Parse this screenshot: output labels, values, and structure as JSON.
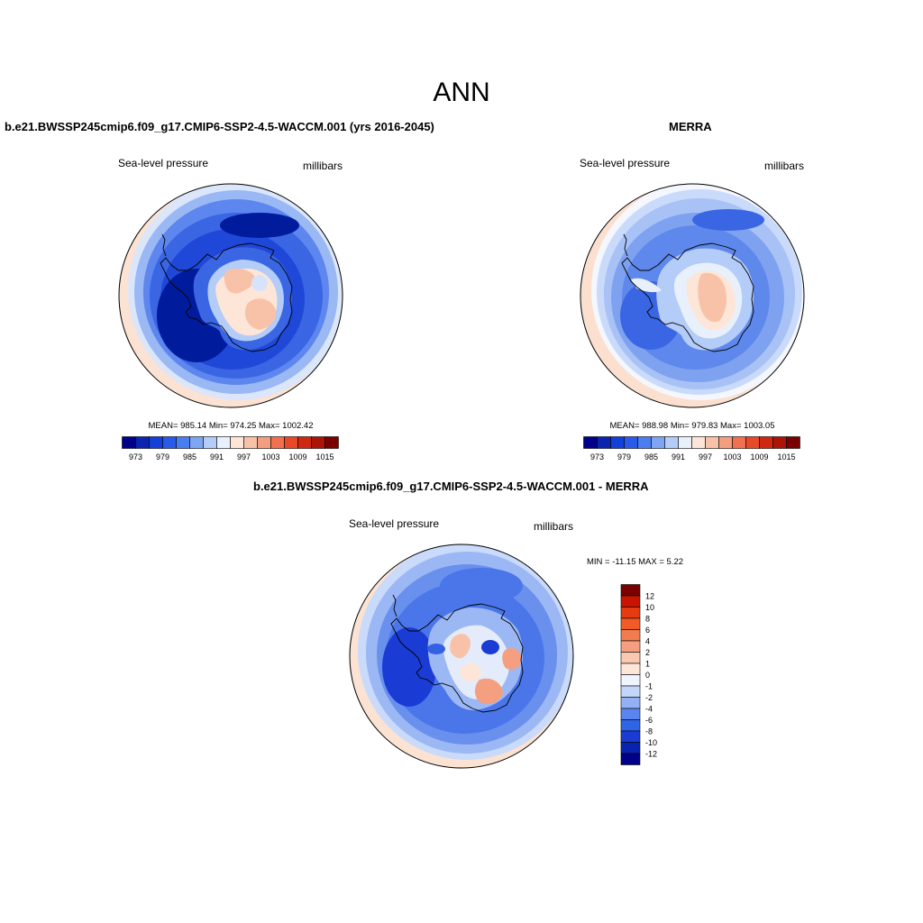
{
  "main_title": "ANN",
  "panels": [
    {
      "title": "b.e21.BWSSP245cmip6.f09_g17.CMIP6-SSP2-4.5-WACCM.001 (yrs 2016-2045)",
      "variable": "Sea-level pressure",
      "units": "millibars",
      "stats": "MEAN= 985.14  Min= 974.25  Max= 1002.42"
    },
    {
      "title": "MERRA",
      "variable": "Sea-level pressure",
      "units": "millibars",
      "stats": "MEAN= 988.98  Min= 979.83  Max= 1003.05"
    },
    {
      "title": "b.e21.BWSSP245cmip6.f09_g17.CMIP6-SSP2-4.5-WACCM.001 - MERRA",
      "variable": "Sea-level pressure",
      "units": "millibars",
      "stats": "MIN = -11.15 MAX =   5.22"
    }
  ],
  "colorbar_abs": {
    "labels": [
      "973",
      "979",
      "985",
      "991",
      "997",
      "1003",
      "1009",
      "1015"
    ],
    "colors": [
      "#00008a",
      "#0a24b0",
      "#1240d8",
      "#2a5ae8",
      "#4a7ef0",
      "#7ea4f4",
      "#b4ccf8",
      "#e8f0fc",
      "#fde6d8",
      "#f8c2a8",
      "#f49e80",
      "#f07050",
      "#e84a28",
      "#d02810",
      "#ac1408",
      "#7a0000"
    ]
  },
  "colorbar_diff": {
    "labels": [
      "12",
      "10",
      "8",
      "6",
      "4",
      "2",
      "1",
      "0",
      "-1",
      "-2",
      "-4",
      "-6",
      "-8",
      "-10",
      "-12"
    ],
    "colors": [
      "#7a0000",
      "#c81400",
      "#e63a10",
      "#f25a28",
      "#f07c50",
      "#f4a080",
      "#f8c8b0",
      "#fde6d8",
      "#f0f4fc",
      "#c4d6f8",
      "#94b0f4",
      "#5c84ee",
      "#3064e6",
      "#1a3cd4",
      "#0a22b0",
      "#00008a"
    ]
  },
  "map_colors": {
    "model_ring": [
      "#fbe2d2",
      "#dbe6fa",
      "#9ab8f4",
      "#5d86ee",
      "#3a66e4",
      "#2048d8",
      "#1034c4"
    ],
    "merra_ring": [
      "#fbe0d0",
      "#f4f7fe",
      "#c9dafb",
      "#a8c2f6",
      "#7fa2f0",
      "#5e88ec",
      "#4670e6"
    ],
    "diff_ring": [
      "#fbe2d2",
      "#c9dafb",
      "#9cb8f4",
      "#6a90ee",
      "#4a76ea",
      "#3460e4"
    ]
  }
}
